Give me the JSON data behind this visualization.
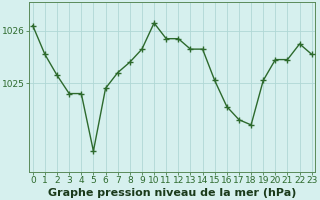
{
  "x": [
    0,
    1,
    2,
    3,
    4,
    5,
    6,
    7,
    8,
    9,
    10,
    11,
    12,
    13,
    14,
    15,
    16,
    17,
    18,
    19,
    20,
    21,
    22,
    23
  ],
  "y": [
    1026.1,
    1025.55,
    1025.15,
    1024.8,
    1024.8,
    1023.7,
    1024.9,
    1025.2,
    1025.4,
    1025.65,
    1026.15,
    1025.85,
    1025.85,
    1025.65,
    1025.65,
    1025.05,
    1024.55,
    1024.3,
    1024.2,
    1025.05,
    1025.45,
    1025.45,
    1025.75,
    1025.55
  ],
  "line_color": "#2d6a2d",
  "marker_color": "#2d6a2d",
  "bg_color": "#d6f0ee",
  "grid_color": "#b0d8d5",
  "xlabel": "Graphe pression niveau de la mer (hPa)",
  "ytick_labels": [
    "1025",
    "1026"
  ],
  "ytick_values": [
    1025,
    1026
  ],
  "ylim": [
    1023.3,
    1026.55
  ],
  "xlim": [
    -0.3,
    23.3
  ],
  "xtick_labels": [
    "0",
    "1",
    "2",
    "3",
    "4",
    "5",
    "6",
    "7",
    "8",
    "9",
    "10",
    "11",
    "12",
    "13",
    "14",
    "15",
    "16",
    "17",
    "18",
    "19",
    "20",
    "21",
    "22",
    "23"
  ],
  "title_fontsize": 8,
  "tick_fontsize": 6.5,
  "marker_size": 4,
  "line_width": 1.0
}
